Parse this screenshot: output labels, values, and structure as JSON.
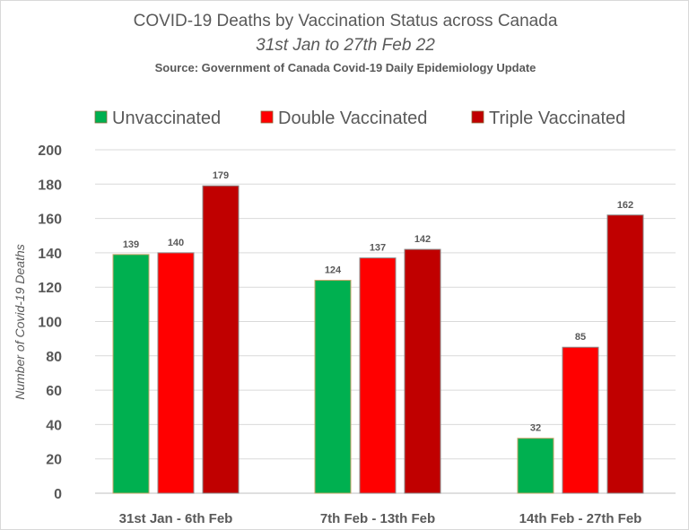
{
  "chart_data": {
    "type": "bar",
    "title": "COVID-19 Deaths by Vaccination Status across Canada",
    "subtitle": "31st Jan to 27th Feb 22",
    "source": "Source: Government of Canada  Covid-19 Daily Epidemiology Update",
    "xlabel": "",
    "ylabel": "Number of Covid-19 Deaths",
    "ylim": [
      0,
      200
    ],
    "yticks": [
      0,
      20,
      40,
      60,
      80,
      100,
      120,
      140,
      160,
      180,
      200
    ],
    "grid": true,
    "legend_position": "top",
    "categories": [
      "31st Jan - 6th Feb",
      "7th Feb - 13th Feb",
      "14th Feb - 27th Feb"
    ],
    "series": [
      {
        "name": "Unvaccinated",
        "color": "#00B050",
        "values": [
          139,
          124,
          32
        ]
      },
      {
        "name": "Double Vaccinated",
        "color": "#FF0000",
        "values": [
          140,
          137,
          85
        ]
      },
      {
        "name": "Triple Vaccinated",
        "color": "#C00000",
        "values": [
          179,
          142,
          162
        ]
      }
    ]
  }
}
